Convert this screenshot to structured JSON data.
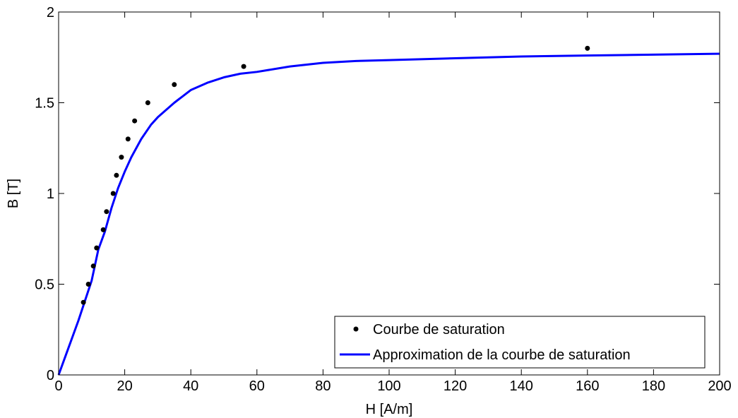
{
  "chart_data": {
    "type": "scatter",
    "xlabel": "H [A/m]",
    "ylabel": "B [T]",
    "xlim": [
      0,
      200
    ],
    "ylim": [
      0,
      2
    ],
    "xticks": [
      0,
      20,
      40,
      60,
      80,
      100,
      120,
      140,
      160,
      180,
      200
    ],
    "yticks": [
      0,
      0.5,
      1,
      1.5,
      2
    ],
    "ytick_labels": [
      "0",
      "0.5",
      "1",
      "1.5",
      "2"
    ],
    "grid": false,
    "legend_position": "bottom-right",
    "series": [
      {
        "name": "Courbe de saturation",
        "kind": "markers",
        "color": "#000000",
        "points": [
          {
            "x": 7.5,
            "y": 0.4
          },
          {
            "x": 9,
            "y": 0.5
          },
          {
            "x": 10.5,
            "y": 0.6
          },
          {
            "x": 11.5,
            "y": 0.7
          },
          {
            "x": 13.5,
            "y": 0.8
          },
          {
            "x": 14.5,
            "y": 0.9
          },
          {
            "x": 16.5,
            "y": 1.0
          },
          {
            "x": 17.5,
            "y": 1.1
          },
          {
            "x": 19,
            "y": 1.2
          },
          {
            "x": 21,
            "y": 1.3
          },
          {
            "x": 23,
            "y": 1.4
          },
          {
            "x": 27,
            "y": 1.5
          },
          {
            "x": 35,
            "y": 1.6
          },
          {
            "x": 56,
            "y": 1.7
          },
          {
            "x": 160,
            "y": 1.8
          }
        ]
      },
      {
        "name": "Approximation de la courbe de saturation",
        "kind": "line",
        "color": "#0000ff",
        "points": [
          {
            "x": 0,
            "y": 0
          },
          {
            "x": 2,
            "y": 0.1
          },
          {
            "x": 4,
            "y": 0.2
          },
          {
            "x": 6,
            "y": 0.3
          },
          {
            "x": 8,
            "y": 0.41
          },
          {
            "x": 10,
            "y": 0.52
          },
          {
            "x": 12,
            "y": 0.69
          },
          {
            "x": 14,
            "y": 0.79
          },
          {
            "x": 16,
            "y": 0.92
          },
          {
            "x": 18,
            "y": 1.03
          },
          {
            "x": 20,
            "y": 1.12
          },
          {
            "x": 22,
            "y": 1.2
          },
          {
            "x": 25,
            "y": 1.3
          },
          {
            "x": 28,
            "y": 1.38
          },
          {
            "x": 30,
            "y": 1.42
          },
          {
            "x": 35,
            "y": 1.5
          },
          {
            "x": 40,
            "y": 1.57
          },
          {
            "x": 45,
            "y": 1.61
          },
          {
            "x": 50,
            "y": 1.64
          },
          {
            "x": 55,
            "y": 1.66
          },
          {
            "x": 60,
            "y": 1.67
          },
          {
            "x": 70,
            "y": 1.7
          },
          {
            "x": 80,
            "y": 1.72
          },
          {
            "x": 90,
            "y": 1.73
          },
          {
            "x": 100,
            "y": 1.735
          },
          {
            "x": 120,
            "y": 1.745
          },
          {
            "x": 140,
            "y": 1.755
          },
          {
            "x": 160,
            "y": 1.76
          },
          {
            "x": 180,
            "y": 1.765
          },
          {
            "x": 200,
            "y": 1.77
          }
        ]
      }
    ]
  }
}
